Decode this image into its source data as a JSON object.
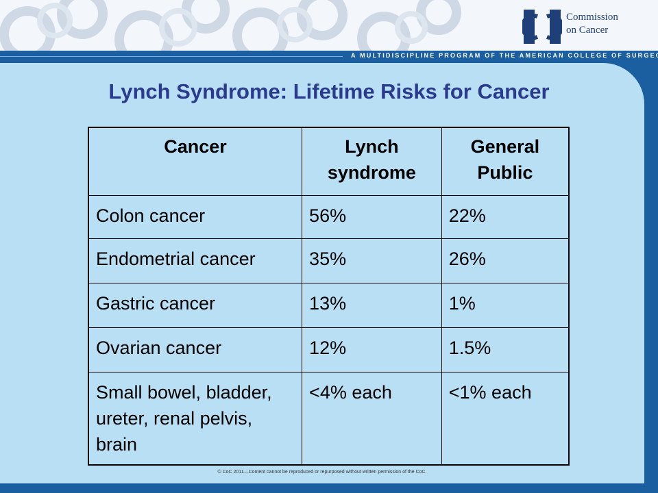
{
  "header": {
    "logo": {
      "line1": "Commission",
      "line2": "on Cancer"
    },
    "tagline": "A MULTIDISCIPLINE PROGRAM OF THE AMERICAN COLLEGE OF SURGEONS"
  },
  "slide": {
    "title": "Lynch Syndrome:  Lifetime Risks for Cancer",
    "table": {
      "headers": {
        "cancer": "Cancer",
        "lynch": "Lynch syndrome",
        "public": "General Public"
      },
      "rows": [
        {
          "cancer": "Colon cancer",
          "lynch": "56%",
          "public": "22%"
        },
        {
          "cancer": "Endometrial cancer",
          "lynch": "35%",
          "public": "26%"
        },
        {
          "cancer": "Gastric cancer",
          "lynch": "13%",
          "public": "1%"
        },
        {
          "cancer": "Ovarian cancer",
          "lynch": "12%",
          "public": "1.5%"
        },
        {
          "cancer": "Small bowel, bladder, ureter, renal pelvis, brain",
          "lynch": "<4% each",
          "public": "<1% each"
        }
      ]
    },
    "footer": "© CoC 2011—Content cannot be reproduced or repurposed without written permission of the CoC."
  },
  "colors": {
    "title": "#2a3a8c",
    "panel": "#b9dff5",
    "frame": "#1b5fa0"
  }
}
